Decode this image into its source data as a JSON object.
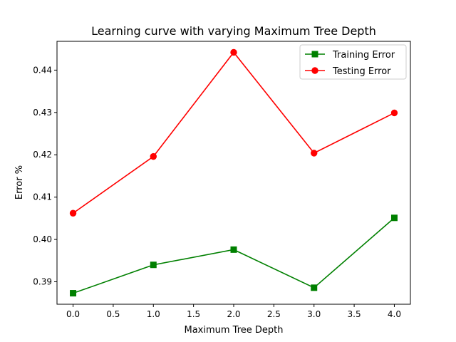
{
  "chart_data": {
    "type": "line",
    "title": "Learning curve with varying Maximum Tree Depth",
    "xlabel": "Maximum Tree Depth",
    "ylabel": "Error %",
    "xlim": [
      -0.2,
      4.2
    ],
    "ylim": [
      0.3847,
      0.4468
    ],
    "xticks": [
      "0.0",
      "0.5",
      "1.0",
      "1.5",
      "2.0",
      "2.5",
      "3.0",
      "3.5",
      "4.0"
    ],
    "yticks": [
      "0.39",
      "0.40",
      "0.41",
      "0.42",
      "0.43",
      "0.44"
    ],
    "grid": false,
    "legend_position": "top-right",
    "x": [
      0,
      1,
      2,
      3,
      4
    ],
    "series": [
      {
        "name": "Training Error",
        "color": "#008000",
        "marker": "square",
        "values": [
          0.3873,
          0.394,
          0.3976,
          0.3886,
          0.4051
        ]
      },
      {
        "name": "Testing Error",
        "color": "#ff0000",
        "marker": "circle",
        "values": [
          0.4062,
          0.4196,
          0.4442,
          0.4204,
          0.4299
        ]
      }
    ]
  }
}
